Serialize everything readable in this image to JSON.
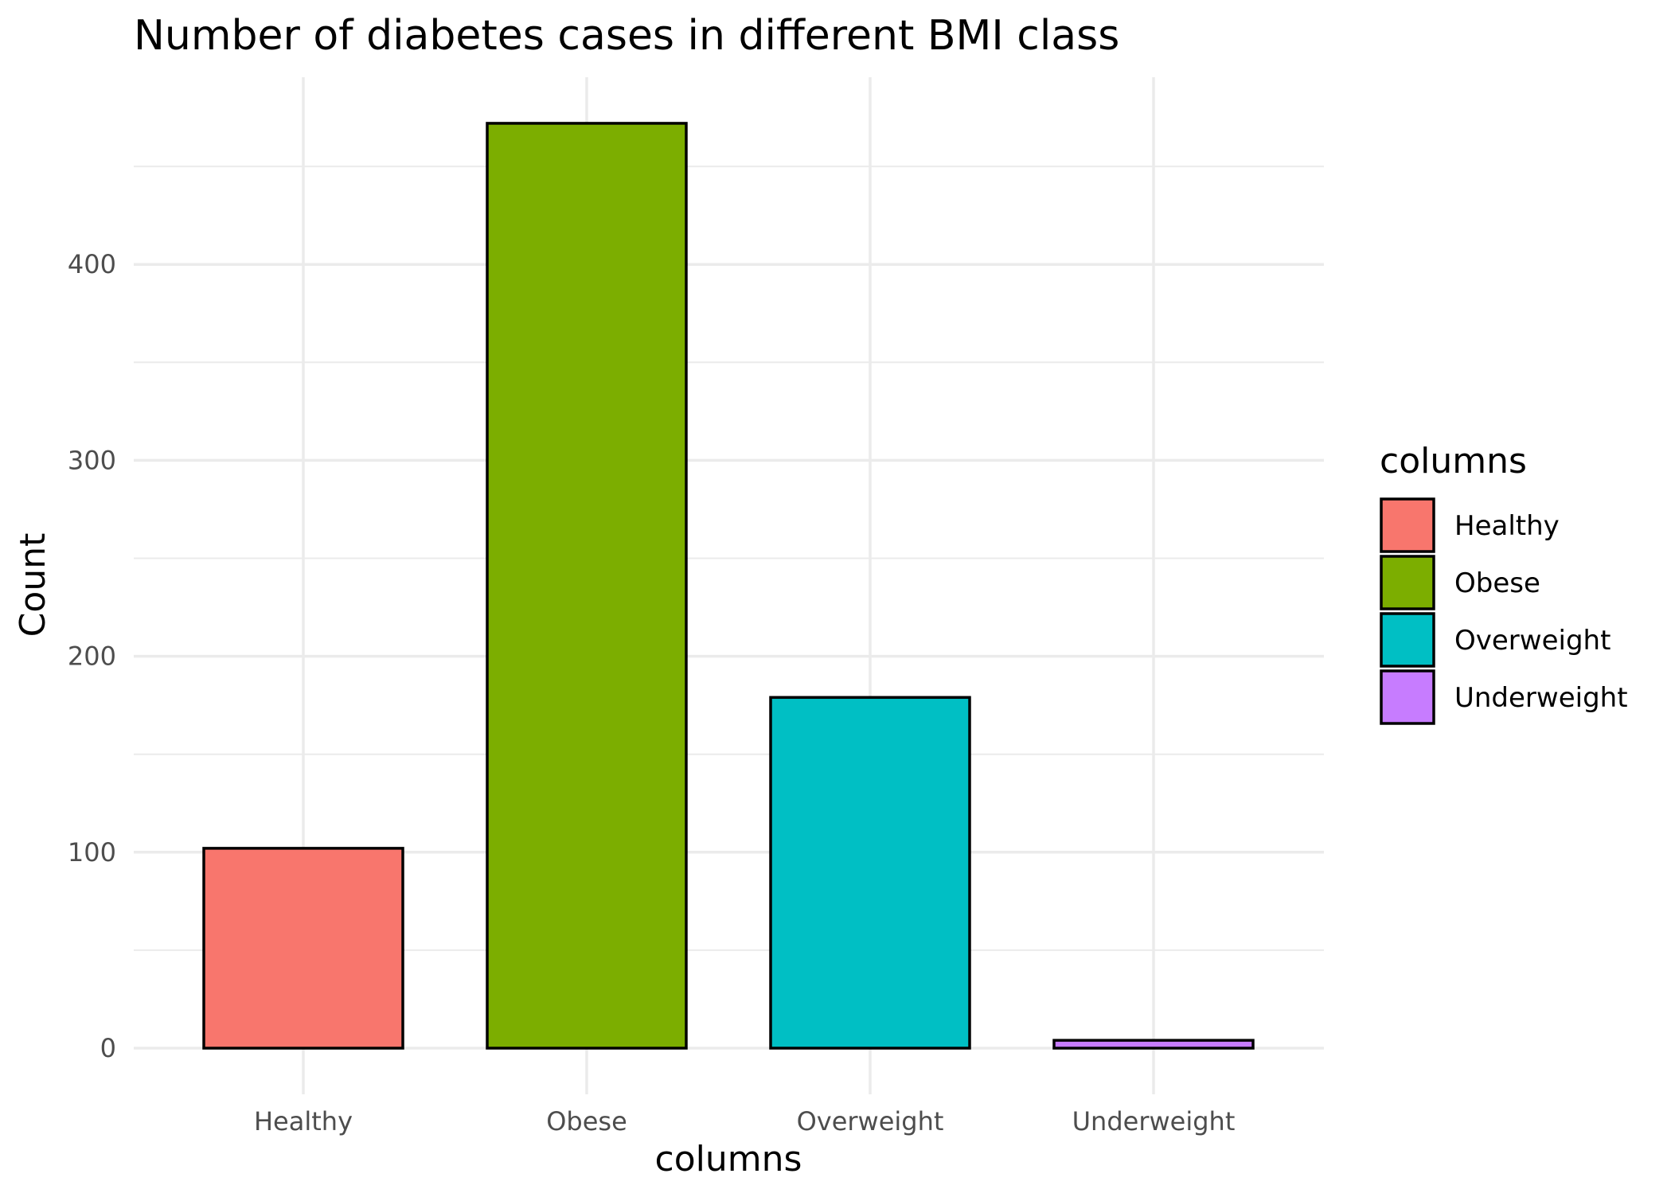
{
  "chart_data": {
    "type": "bar",
    "title": "Number of diabetes cases in different BMI class",
    "xlabel": "columns",
    "ylabel": "Count",
    "categories": [
      "Healthy",
      "Obese",
      "Overweight",
      "Underweight"
    ],
    "values": [
      102,
      472,
      179,
      4
    ],
    "colors": [
      "#F8766D",
      "#7CAE00",
      "#00BFC4",
      "#C77CFF"
    ],
    "ylim": [
      0,
      500
    ],
    "yticks": [
      0,
      100,
      200,
      300,
      400
    ],
    "yticks_labels": [
      "0",
      "100",
      "200",
      "300",
      "400"
    ],
    "grid": true,
    "legend": {
      "title": "columns",
      "position": "right",
      "entries": [
        "Healthy",
        "Obese",
        "Overweight",
        "Underweight"
      ]
    }
  }
}
